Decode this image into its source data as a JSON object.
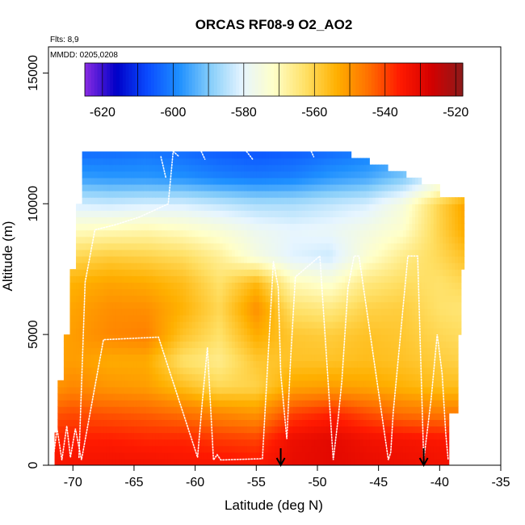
{
  "chart_data": {
    "type": "heatmap",
    "title": "ORCAS RF08-9 O2_AO2",
    "annotations": {
      "flights": "Flts: 8,9",
      "dates": "MMDD: 0205,0208"
    },
    "xlabel": "Latitude (deg N)",
    "ylabel": "Altitude (m)",
    "xlim": [
      -72,
      -35
    ],
    "ylim": [
      0,
      16000
    ],
    "x_ticks": [
      -70,
      -65,
      -60,
      -55,
      -50,
      -45,
      -40,
      -35
    ],
    "x_tick_labels": [
      "-70",
      "-65",
      "-60",
      "-55",
      "-50",
      "-45",
      "-40",
      "-35"
    ],
    "y_ticks": [
      0,
      5000,
      10000,
      15000
    ],
    "y_tick_labels": [
      "0",
      "5000",
      "10000",
      "15000"
    ],
    "colorbar": {
      "range": [
        -625,
        -518
      ],
      "ticks": [
        -620,
        -600,
        -580,
        -560,
        -540,
        -520
      ],
      "tick_labels": [
        "-620",
        "-600",
        "-580",
        "-560",
        "-540",
        "-520"
      ],
      "colors": [
        "#8a2be2",
        "#0000c8",
        "#0a4cff",
        "#1e90ff",
        "#87cefa",
        "#e6f5ff",
        "#ffffc8",
        "#ffe066",
        "#ffb000",
        "#ff7000",
        "#ff1a00",
        "#d40000",
        "#8b1a1a"
      ]
    },
    "profiles": [
      {
        "lat": -71.5,
        "alt": [
          0,
          1000,
          2000,
          3000,
          4000,
          5000,
          6000,
          7000,
          8000,
          9000,
          10000,
          11000,
          12000
        ],
        "value": [
          -534,
          -537,
          -542,
          -550,
          -552,
          -553,
          -553,
          -554,
          -561,
          -570,
          -581,
          -594,
          -602
        ]
      },
      {
        "lat": -70,
        "alt": [
          0,
          1000,
          2000,
          3000,
          4000,
          5000,
          6000,
          7000,
          8000,
          9000,
          10000,
          11000,
          12000
        ],
        "value": [
          -534,
          -536,
          -541,
          -548,
          -551,
          -551,
          -552,
          -554,
          -561,
          -571,
          -582,
          -596,
          -603
        ]
      },
      {
        "lat": -67,
        "alt": [
          0,
          1000,
          2000,
          3000,
          4000,
          5000,
          6000,
          7000,
          8000,
          9000,
          10000,
          11000,
          12000
        ],
        "value": [
          -533,
          -536,
          -542,
          -550,
          -553,
          -548,
          -549,
          -552,
          -559,
          -570,
          -583,
          -597,
          -603
        ]
      },
      {
        "lat": -64,
        "alt": [
          0,
          1000,
          2000,
          3000,
          4000,
          5000,
          6000,
          7000,
          8000,
          9000,
          10000,
          11000,
          12000
        ],
        "value": [
          -533,
          -537,
          -543,
          -551,
          -553,
          -547,
          -549,
          -553,
          -560,
          -569,
          -582,
          -597,
          -602
        ]
      },
      {
        "lat": -61,
        "alt": [
          0,
          1000,
          2000,
          3000,
          4000,
          5000,
          6000,
          7000,
          8000,
          9000,
          10000,
          11000,
          12000
        ],
        "value": [
          -534,
          -537,
          -545,
          -556,
          -563,
          -557,
          -554,
          -556,
          -562,
          -571,
          -582,
          -598,
          -603
        ]
      },
      {
        "lat": -58,
        "alt": [
          0,
          1000,
          2000,
          3000,
          4000,
          5000,
          6000,
          7000,
          8000,
          9000,
          10000,
          11000,
          12000
        ],
        "value": [
          -534,
          -539,
          -548,
          -561,
          -566,
          -563,
          -561,
          -563,
          -567,
          -574,
          -584,
          -600,
          -605
        ]
      },
      {
        "lat": -55,
        "alt": [
          0,
          1000,
          2000,
          3000,
          4000,
          5000,
          6000,
          7000,
          8000,
          9000,
          10000,
          11000,
          12000
        ],
        "value": [
          -535,
          -540,
          -550,
          -560,
          -558,
          -553,
          -549,
          -555,
          -575,
          -578,
          -586,
          -601,
          -606
        ]
      },
      {
        "lat": -52,
        "alt": [
          0,
          1000,
          2000,
          3000,
          4000,
          5000,
          6000,
          7000,
          8000,
          9000,
          10000,
          11000,
          12000
        ],
        "value": [
          -531,
          -532,
          -540,
          -552,
          -557,
          -558,
          -563,
          -570,
          -581,
          -580,
          -586,
          -600,
          -605
        ]
      },
      {
        "lat": -49,
        "alt": [
          0,
          1000,
          2000,
          3000,
          4000,
          5000,
          6000,
          7000,
          8000,
          9000,
          10000,
          11000,
          12000
        ],
        "value": [
          -530,
          -530,
          -537,
          -551,
          -557,
          -559,
          -565,
          -573,
          -583,
          -579,
          -584,
          -597,
          -603
        ]
      },
      {
        "lat": -46,
        "alt": [
          0,
          1000,
          2000,
          3000,
          4000,
          5000,
          6000,
          7000,
          8000,
          9000,
          10000,
          11000,
          12000
        ],
        "value": [
          -531,
          -533,
          -541,
          -552,
          -556,
          -557,
          -560,
          -565,
          -573,
          -576,
          -582,
          -595,
          -601
        ]
      },
      {
        "lat": -43,
        "alt": [
          0,
          1000,
          2000,
          3000,
          4000,
          5000,
          6000,
          7000,
          8000,
          9000,
          10000,
          11000,
          12000
        ],
        "value": [
          -532,
          -534,
          -545,
          -554,
          -557,
          -558,
          -559,
          -562,
          -566,
          -572,
          -575,
          -590,
          -598
        ]
      },
      {
        "lat": -40,
        "alt": [
          0,
          1000,
          2000,
          3000,
          4000,
          5000,
          6000,
          7000,
          8000,
          9000,
          10000,
          11000,
          12000
        ],
        "value": [
          -533,
          -535,
          -546,
          -556,
          -559,
          -561,
          -563,
          -563,
          -561,
          -560,
          -560,
          -580,
          -590
        ]
      },
      {
        "lat": -38,
        "alt": [
          0,
          1000,
          2000,
          3000,
          4000,
          5000,
          6000,
          7000,
          8000,
          9000,
          10000,
          11000,
          12000
        ],
        "value": [
          -533,
          -535,
          -546,
          -556,
          -560,
          -562,
          -564,
          -561,
          -557,
          -553,
          -552,
          -575,
          -585
        ]
      }
    ],
    "flight_tracks": [
      {
        "lat": [
          -71.6,
          -71.3,
          -70.9,
          -70.5,
          -70.2,
          -69.8,
          -69.3,
          -67.5,
          -63.0,
          -59.8,
          -59.4,
          -59.0,
          -58.5,
          -58.2,
          -57.9,
          -54.5,
          -53.6,
          -53.2,
          -53.0,
          -52.5,
          -52.2,
          -51.8,
          -49.8,
          -48.7,
          -48.3,
          -48.0,
          -47.5,
          -47.0,
          -46.6,
          -44.2,
          -44.0,
          -43.8,
          -42.6,
          -41.8,
          -41.3,
          -40.7,
          -40.2,
          -39.8,
          -39.5,
          -39.3
        ],
        "alt": [
          300,
          1400,
          200,
          1500,
          300,
          1400,
          200,
          4800,
          4900,
          300,
          2500,
          4500,
          200,
          400,
          200,
          250,
          7800,
          6800,
          3500,
          1000,
          4000,
          7200,
          8000,
          200,
          1800,
          3200,
          6800,
          8000,
          8000,
          200,
          500,
          2000,
          8000,
          8000,
          200,
          2500,
          5000,
          3500,
          1200,
          200
        ]
      },
      {
        "lat": [
          -69.5,
          -69.0,
          -68.2,
          -66.5,
          -64.5,
          -62.2,
          -61.8,
          -61.3
        ],
        "alt": [
          300,
          7000,
          9000,
          9200,
          9500,
          10000,
          12000,
          11800
        ]
      },
      {
        "lat": [
          -62.8,
          -62.4
        ],
        "alt": [
          11800,
          11000
        ]
      },
      {
        "lat": [
          -59.5,
          -59.2
        ],
        "alt": [
          12000,
          11700
        ]
      },
      {
        "lat": [
          -55.8,
          -55.3
        ],
        "alt": [
          12000,
          11700
        ]
      },
      {
        "lat": [
          -50.5,
          -50.3
        ],
        "alt": [
          12000,
          11800
        ]
      }
    ],
    "markers": [
      {
        "lat": -53.0,
        "type": "down-arrow"
      },
      {
        "lat": -41.3,
        "type": "down-arrow"
      }
    ]
  }
}
